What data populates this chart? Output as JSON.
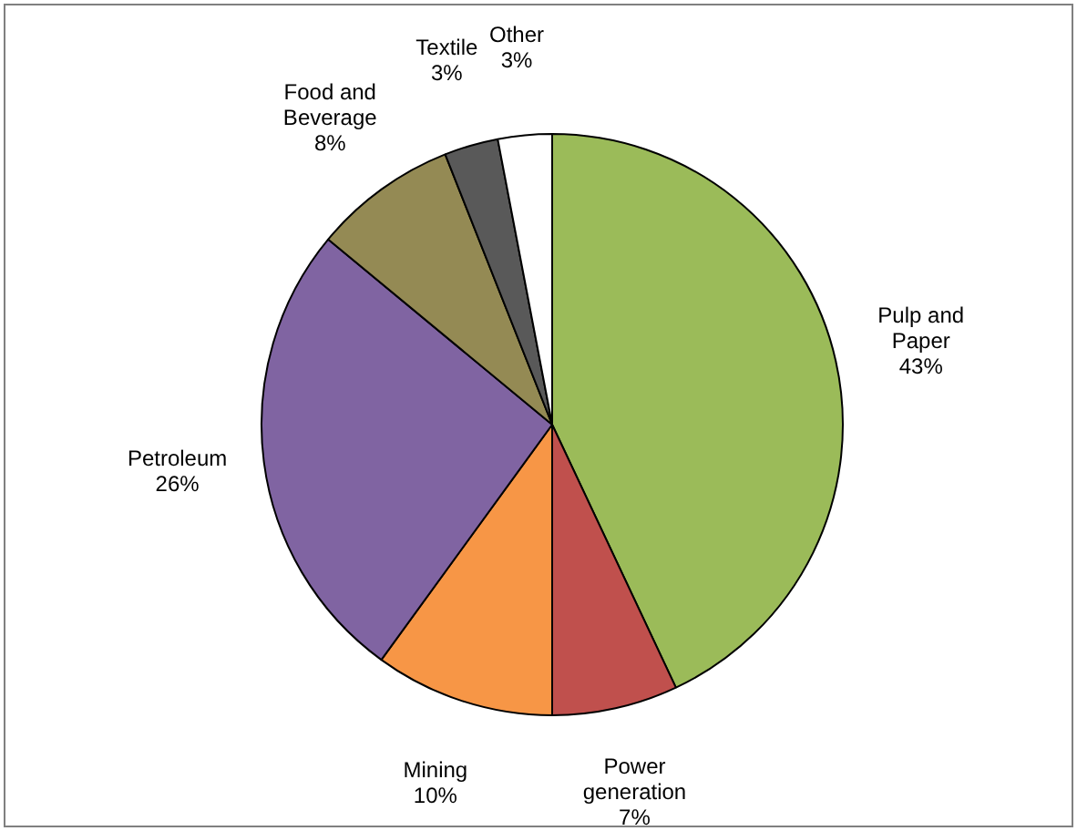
{
  "chart_data": {
    "type": "pie",
    "categories": [
      "Pulp and Paper",
      "Power generation",
      "Mining",
      "Petroleum",
      "Food and Beverage",
      "Textile",
      "Other"
    ],
    "values": [
      43,
      7,
      10,
      26,
      8,
      3,
      3
    ],
    "value_labels": [
      "43%",
      "7%",
      "10%",
      "26%",
      "8%",
      "3%",
      "3%"
    ],
    "colors": [
      "#9bbb59",
      "#c0504d",
      "#f79646",
      "#8064a2",
      "#948a54",
      "#595959",
      "#ffffff"
    ],
    "legend": false
  }
}
